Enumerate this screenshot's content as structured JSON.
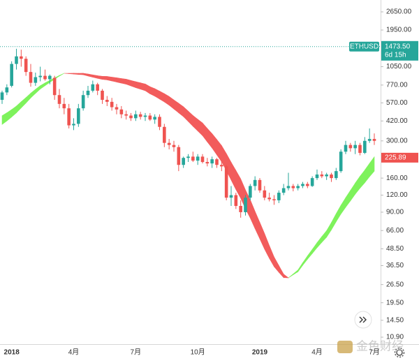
{
  "chart_data": {
    "type": "candlestick",
    "symbol": "ETHUSD",
    "log_scale": true,
    "grid": false,
    "up_color": "#26a69a",
    "down_color": "#ef5350",
    "ylim": [
      9.69,
      3238
    ],
    "yticks": [
      {
        "value": 2650,
        "label": "2650.00"
      },
      {
        "value": 1950,
        "label": "1950.00"
      },
      {
        "value": 1050,
        "label": "1050.00"
      },
      {
        "value": 770,
        "label": "770.00"
      },
      {
        "value": 570,
        "label": "570.00"
      },
      {
        "value": 420,
        "label": "420.00"
      },
      {
        "value": 300,
        "label": "300.00"
      },
      {
        "value": 160,
        "label": "160.00"
      },
      {
        "value": 120,
        "label": "120.00"
      },
      {
        "value": 90,
        "label": "90.00"
      },
      {
        "value": 66,
        "label": "66.00"
      },
      {
        "value": 48.5,
        "label": "48.50"
      },
      {
        "value": 36.5,
        "label": "36.50"
      },
      {
        "value": 26.5,
        "label": "26.50"
      },
      {
        "value": 19.5,
        "label": "19.50"
      },
      {
        "value": 14.5,
        "label": "14.50"
      },
      {
        "value": 10.9,
        "label": "10.90"
      }
    ],
    "categories": [
      null,
      null,
      "2018",
      null,
      null,
      null,
      null,
      null,
      null,
      null,
      null,
      null,
      null,
      null,
      null,
      "4月",
      null,
      null,
      null,
      null,
      null,
      null,
      null,
      null,
      null,
      null,
      null,
      null,
      "7月",
      null,
      null,
      null,
      null,
      null,
      null,
      null,
      null,
      null,
      null,
      null,
      null,
      "10月",
      null,
      null,
      null,
      null,
      null,
      null,
      null,
      null,
      null,
      null,
      null,
      null,
      "2019",
      null,
      null,
      null,
      null,
      null,
      null,
      null,
      null,
      null,
      null,
      null,
      "4月",
      null,
      null,
      null,
      null,
      null,
      null,
      null,
      null,
      null,
      null,
      null,
      "7月"
    ],
    "candles": [
      [
        600,
        700,
        560,
        680
      ],
      [
        680,
        780,
        650,
        740
      ],
      [
        760,
        1150,
        740,
        1100
      ],
      [
        1100,
        1420,
        1000,
        1250
      ],
      [
        1250,
        1400,
        1050,
        1200
      ],
      [
        1200,
        1250,
        900,
        960
      ],
      [
        960,
        1100,
        750,
        800
      ],
      [
        800,
        950,
        760,
        880
      ],
      [
        880,
        1050,
        820,
        900
      ],
      [
        900,
        1000,
        830,
        850
      ],
      [
        850,
        920,
        780,
        900
      ],
      [
        870,
        900,
        600,
        650
      ],
      [
        650,
        720,
        520,
        560
      ],
      [
        560,
        620,
        470,
        520
      ],
      [
        520,
        560,
        370,
        390
      ],
      [
        390,
        440,
        360,
        400
      ],
      [
        400,
        560,
        380,
        520
      ],
      [
        520,
        700,
        500,
        650
      ],
      [
        650,
        760,
        620,
        700
      ],
      [
        700,
        830,
        680,
        780
      ],
      [
        780,
        800,
        650,
        700
      ],
      [
        700,
        720,
        560,
        600
      ],
      [
        600,
        640,
        540,
        580
      ],
      [
        580,
        620,
        500,
        530
      ],
      [
        530,
        560,
        470,
        510
      ],
      [
        510,
        540,
        440,
        470
      ],
      [
        470,
        500,
        430,
        460
      ],
      [
        460,
        480,
        420,
        440
      ],
      [
        440,
        500,
        420,
        470
      ],
      [
        470,
        490,
        430,
        450
      ],
      [
        450,
        480,
        420,
        460
      ],
      [
        460,
        480,
        420,
        430
      ],
      [
        430,
        470,
        400,
        450
      ],
      [
        450,
        470,
        360,
        380
      ],
      [
        380,
        400,
        270,
        290
      ],
      [
        290,
        310,
        260,
        280
      ],
      [
        280,
        300,
        250,
        270
      ],
      [
        270,
        280,
        180,
        200
      ],
      [
        200,
        230,
        190,
        225
      ],
      [
        225,
        240,
        210,
        230
      ],
      [
        230,
        250,
        210,
        215
      ],
      [
        215,
        240,
        200,
        230
      ],
      [
        230,
        240,
        205,
        210
      ],
      [
        210,
        225,
        195,
        205
      ],
      [
        205,
        230,
        190,
        220
      ],
      [
        220,
        225,
        190,
        200
      ],
      [
        200,
        215,
        180,
        195
      ],
      [
        195,
        200,
        110,
        115
      ],
      [
        115,
        140,
        100,
        120
      ],
      [
        120,
        125,
        95,
        100
      ],
      [
        100,
        110,
        82,
        90
      ],
      [
        90,
        120,
        85,
        115
      ],
      [
        115,
        145,
        110,
        140
      ],
      [
        140,
        165,
        130,
        155
      ],
      [
        155,
        160,
        125,
        130
      ],
      [
        130,
        140,
        110,
        115
      ],
      [
        115,
        125,
        108,
        112
      ],
      [
        112,
        120,
        102,
        110
      ],
      [
        110,
        130,
        105,
        125
      ],
      [
        125,
        145,
        120,
        135
      ],
      [
        135,
        175,
        130,
        140
      ],
      [
        140,
        145,
        128,
        135
      ],
      [
        135,
        145,
        130,
        140
      ],
      [
        140,
        150,
        135,
        145
      ],
      [
        145,
        150,
        135,
        140
      ],
      [
        140,
        165,
        138,
        160
      ],
      [
        160,
        185,
        155,
        170
      ],
      [
        170,
        180,
        160,
        165
      ],
      [
        165,
        175,
        155,
        170
      ],
      [
        170,
        175,
        150,
        160
      ],
      [
        160,
        190,
        155,
        180
      ],
      [
        180,
        260,
        175,
        250
      ],
      [
        250,
        300,
        240,
        280
      ],
      [
        280,
        290,
        250,
        265
      ],
      [
        265,
        300,
        240,
        280
      ],
      [
        280,
        290,
        235,
        245
      ],
      [
        245,
        320,
        240,
        300
      ],
      [
        300,
        370,
        290,
        310
      ],
      [
        310,
        340,
        280,
        300
      ]
    ],
    "ribbon": {
      "up_color": "#7ef25c",
      "down_color": "#f25c5c",
      "fast": [
        459,
        482,
        509,
        540,
        581,
        623,
        671,
        716,
        762,
        798,
        834,
        869,
        905,
        939,
        933,
        927,
        921,
        916,
        897,
        879,
        862,
        847,
        840,
        825,
        810,
        795,
        781,
        759,
        737,
        718,
        700,
        664,
        638,
        608,
        579,
        548,
        514,
        482,
        452,
        417,
        384,
        355,
        328,
        295,
        266,
        237,
        211,
        182,
        155,
        132,
        114,
        95.6,
        81.6,
        68.3,
        57.5,
        48.2,
        41.3,
        35.9,
        32.6,
        29.8,
        29.7,
        31.7,
        33.9,
        38.3,
        43.0,
        48.0,
        53.7,
        59.6,
        65.8,
        75.5,
        87.7,
        101,
        115,
        130,
        147,
        165,
        183,
        205,
        229
      ],
      "slow": [
        396,
        420,
        449,
        482,
        524,
        568,
        620,
        669,
        720,
        762,
        806,
        851,
        896,
        939,
        939,
        940,
        939,
        940,
        928,
        915,
        902,
        893,
        891,
        880,
        871,
        860,
        851,
        832,
        815,
        800,
        784,
        749,
        725,
        695,
        666,
        635,
        599,
        566,
        534,
        496,
        460,
        432,
        406,
        370,
        339,
        307,
        277,
        242,
        209,
        182,
        158,
        131,
        111,
        91.3,
        75.8,
        62.7,
        51.2,
        42.2,
        36.5,
        31.6,
        29.7,
        31.3,
        32.9,
        36.7,
        40.7,
        44.8,
        49.4,
        54.1,
        59.0,
        66.8,
        76.6,
        87.3,
        97.8,
        109,
        122,
        135,
        148,
        164,
        180
      ]
    },
    "price_line": {
      "value": 1473.5,
      "label": "1473.50",
      "countdown": "6d 15h",
      "color": "#26a69a"
    },
    "ribbon_last": {
      "value": 225.89,
      "color": "#ef5350"
    },
    "watermark": "金色财经"
  }
}
